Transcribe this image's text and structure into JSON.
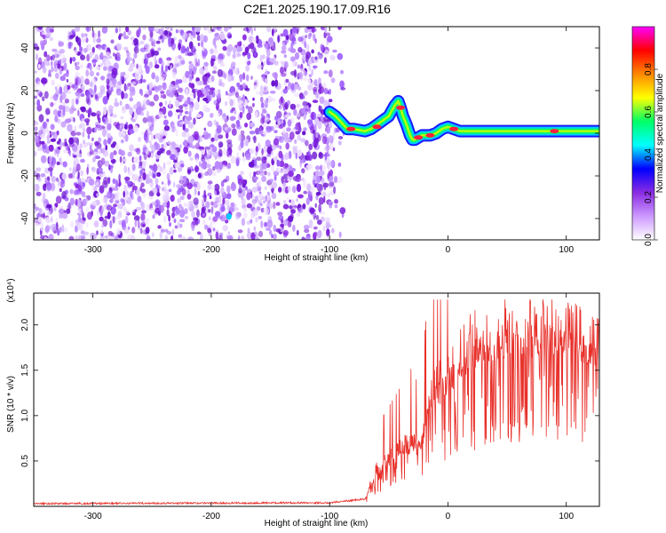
{
  "title": "C2E1.2025.190.17.09.R16",
  "chart_data": [
    {
      "type": "heatmap",
      "name": "spectrogram",
      "xlabel": "Height of straight line (km)",
      "ylabel": "Frequency (Hz)",
      "xlim": [
        -350,
        128
      ],
      "ylim": [
        -50,
        50
      ],
      "xticks": [
        -300,
        -200,
        -100,
        0,
        100
      ],
      "yticks": [
        -40,
        -20,
        0,
        20,
        40
      ],
      "noise_region_x": [
        -350,
        -95
      ],
      "signal_track": {
        "x": [
          -100,
          -95,
          -90,
          -85,
          -80,
          -75,
          -70,
          -65,
          -60,
          -55,
          -50,
          -45,
          -42,
          -40,
          -38,
          -35,
          -32,
          -30,
          -28,
          -25,
          -22,
          -20,
          -15,
          -10,
          -5,
          0,
          10,
          20,
          40,
          60,
          80,
          100,
          128
        ],
        "y": [
          10,
          8,
          5,
          2,
          2,
          1.5,
          1,
          2,
          4,
          6,
          8,
          13,
          15,
          12,
          8,
          4,
          -1,
          -3,
          -3,
          -2,
          -1,
          -1,
          -1,
          0,
          2,
          3,
          1,
          1,
          1,
          1,
          1,
          1,
          1
        ]
      },
      "isolated_feature": {
        "x": -185,
        "y": -39
      },
      "colorbar": {
        "label": "Normalized spectral amplitude",
        "range": [
          0,
          1
        ],
        "ticks": [
          "0.0",
          "0.2",
          "0.4",
          "0.6",
          "0.8"
        ],
        "colors": [
          "#ffffff",
          "#cc99ff",
          "#8a2be2",
          "#0000ff",
          "#00ffff",
          "#00ff66",
          "#ffff00",
          "#ff8800",
          "#ff0000",
          "#ff00ff"
        ]
      }
    },
    {
      "type": "line",
      "name": "snr",
      "xlabel": "Height of straight line (km)",
      "ylabel": "SNR (10 * v/v)",
      "exponent_label": "(x10⁴)",
      "xlim": [
        -350,
        128
      ],
      "ylim": [
        0,
        2.35
      ],
      "xticks": [
        -300,
        -200,
        -100,
        0,
        100
      ],
      "yticks": [
        0.5,
        1.0,
        1.5,
        2.0
      ],
      "ytick_labels": [
        "0.5",
        "1.0",
        "1.5",
        "2.0"
      ],
      "color": "#e8302a",
      "envelope": {
        "x": [
          -350,
          -100,
          -70,
          -65,
          -60,
          -55,
          -50,
          -45,
          -40,
          -35,
          -30,
          -25,
          -20,
          -15,
          -10,
          0,
          10,
          20,
          30,
          40,
          50,
          60,
          70,
          80,
          90,
          100,
          110,
          120,
          128
        ],
        "y": [
          0.03,
          0.04,
          0.08,
          0.25,
          0.4,
          0.45,
          0.5,
          0.55,
          0.6,
          0.65,
          0.7,
          0.6,
          0.85,
          1.15,
          1.25,
          1.45,
          1.6,
          1.75,
          1.82,
          1.88,
          1.93,
          1.95,
          1.93,
          1.92,
          1.9,
          1.86,
          1.82,
          1.8,
          1.78
        ]
      },
      "max_y": 2.28
    }
  ]
}
